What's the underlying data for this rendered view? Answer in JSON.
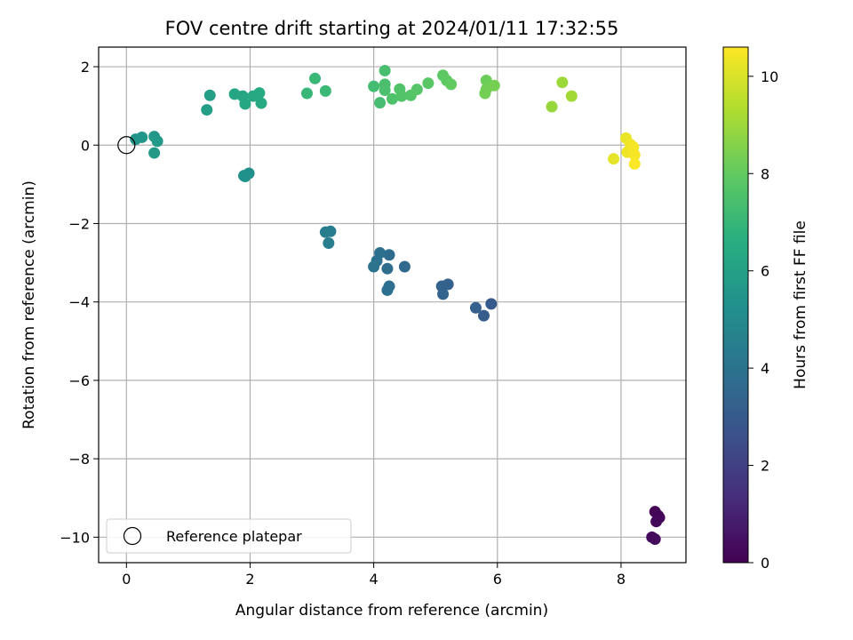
{
  "chart_data": {
    "type": "scatter",
    "title": "FOV centre drift starting at 2024/01/11 17:32:55",
    "xlabel": "Angular distance from reference (arcmin)",
    "ylabel": "Rotation from reference (arcmin)",
    "colorbar_label": "Hours from first FF file",
    "xlim": [
      -0.45,
      9.05
    ],
    "ylim": [
      -10.65,
      2.5
    ],
    "x_ticks": [
      0,
      2,
      4,
      6,
      8
    ],
    "y_ticks": [
      -10,
      -8,
      -6,
      -4,
      -2,
      0,
      2
    ],
    "colorbar_range": [
      0,
      10.6
    ],
    "colorbar_ticks": [
      0,
      2,
      4,
      6,
      8,
      10
    ],
    "colormap": "viridis",
    "grid": true,
    "legend": {
      "placement": "lower-left",
      "entries": [
        "Reference platepar"
      ]
    },
    "reference_point": {
      "x": 0,
      "y": 0
    },
    "points": [
      {
        "x": 8.55,
        "y": -9.35,
        "t": 0.05
      },
      {
        "x": 8.6,
        "y": -9.45,
        "t": 0.1
      },
      {
        "x": 8.62,
        "y": -9.5,
        "t": 0.15
      },
      {
        "x": 8.57,
        "y": -9.6,
        "t": 0.2
      },
      {
        "x": 8.5,
        "y": -10.0,
        "t": 0.25
      },
      {
        "x": 8.55,
        "y": -10.05,
        "t": 0.3
      },
      {
        "x": 5.9,
        "y": -4.05,
        "t": 3.0
      },
      {
        "x": 5.78,
        "y": -4.35,
        "t": 3.1
      },
      {
        "x": 5.65,
        "y": -4.15,
        "t": 3.2
      },
      {
        "x": 5.2,
        "y": -3.55,
        "t": 3.3
      },
      {
        "x": 5.1,
        "y": -3.6,
        "t": 3.35
      },
      {
        "x": 5.12,
        "y": -3.8,
        "t": 3.4
      },
      {
        "x": 4.5,
        "y": -3.1,
        "t": 3.6
      },
      {
        "x": 4.25,
        "y": -2.8,
        "t": 3.7
      },
      {
        "x": 4.22,
        "y": -3.15,
        "t": 3.75
      },
      {
        "x": 4.25,
        "y": -3.6,
        "t": 3.8
      },
      {
        "x": 4.22,
        "y": -3.7,
        "t": 3.85
      },
      {
        "x": 4.1,
        "y": -2.75,
        "t": 3.9
      },
      {
        "x": 4.05,
        "y": -2.95,
        "t": 3.95
      },
      {
        "x": 4.0,
        "y": -3.1,
        "t": 4.0
      },
      {
        "x": 3.3,
        "y": -2.2,
        "t": 4.4
      },
      {
        "x": 3.22,
        "y": -2.22,
        "t": 4.45
      },
      {
        "x": 3.27,
        "y": -2.5,
        "t": 4.5
      },
      {
        "x": 1.9,
        "y": -0.78,
        "t": 5.2
      },
      {
        "x": 1.98,
        "y": -0.72,
        "t": 5.25
      },
      {
        "x": 1.92,
        "y": -0.8,
        "t": 5.3
      },
      {
        "x": 0.15,
        "y": 0.15,
        "t": 5.5
      },
      {
        "x": 0.25,
        "y": 0.2,
        "t": 5.55
      },
      {
        "x": 0.45,
        "y": 0.22,
        "t": 5.6
      },
      {
        "x": 0.5,
        "y": 0.1,
        "t": 5.65
      },
      {
        "x": 0.45,
        "y": -0.2,
        "t": 5.7
      },
      {
        "x": 1.3,
        "y": 0.9,
        "t": 5.9
      },
      {
        "x": 1.35,
        "y": 1.27,
        "t": 5.95
      },
      {
        "x": 1.75,
        "y": 1.3,
        "t": 6.2
      },
      {
        "x": 1.88,
        "y": 1.25,
        "t": 6.25
      },
      {
        "x": 1.92,
        "y": 1.05,
        "t": 6.3
      },
      {
        "x": 2.05,
        "y": 1.25,
        "t": 6.35
      },
      {
        "x": 2.15,
        "y": 1.33,
        "t": 6.4
      },
      {
        "x": 2.18,
        "y": 1.07,
        "t": 6.45
      },
      {
        "x": 2.92,
        "y": 1.32,
        "t": 7.0
      },
      {
        "x": 3.05,
        "y": 1.7,
        "t": 7.05
      },
      {
        "x": 3.22,
        "y": 1.38,
        "t": 7.1
      },
      {
        "x": 4.0,
        "y": 1.5,
        "t": 7.3
      },
      {
        "x": 4.1,
        "y": 1.08,
        "t": 7.35
      },
      {
        "x": 4.18,
        "y": 1.9,
        "t": 7.4
      },
      {
        "x": 4.18,
        "y": 1.55,
        "t": 7.45
      },
      {
        "x": 4.18,
        "y": 1.4,
        "t": 7.5
      },
      {
        "x": 4.3,
        "y": 1.18,
        "t": 7.55
      },
      {
        "x": 4.42,
        "y": 1.43,
        "t": 7.6
      },
      {
        "x": 4.45,
        "y": 1.25,
        "t": 7.65
      },
      {
        "x": 4.6,
        "y": 1.27,
        "t": 7.7
      },
      {
        "x": 4.7,
        "y": 1.42,
        "t": 7.75
      },
      {
        "x": 4.88,
        "y": 1.58,
        "t": 7.8
      },
      {
        "x": 5.12,
        "y": 1.78,
        "t": 7.9
      },
      {
        "x": 5.18,
        "y": 1.65,
        "t": 7.95
      },
      {
        "x": 5.25,
        "y": 1.55,
        "t": 8.0
      },
      {
        "x": 5.82,
        "y": 1.65,
        "t": 8.2
      },
      {
        "x": 5.82,
        "y": 1.42,
        "t": 8.25
      },
      {
        "x": 5.8,
        "y": 1.32,
        "t": 8.3
      },
      {
        "x": 5.95,
        "y": 1.52,
        "t": 8.35
      },
      {
        "x": 6.88,
        "y": 0.98,
        "t": 8.9
      },
      {
        "x": 7.05,
        "y": 1.6,
        "t": 9.0
      },
      {
        "x": 7.2,
        "y": 1.25,
        "t": 9.1
      },
      {
        "x": 7.88,
        "y": -0.35,
        "t": 10.2
      },
      {
        "x": 8.08,
        "y": 0.18,
        "t": 10.3
      },
      {
        "x": 8.1,
        "y": -0.18,
        "t": 10.35
      },
      {
        "x": 8.15,
        "y": 0.02,
        "t": 10.4
      },
      {
        "x": 8.2,
        "y": -0.05,
        "t": 10.45
      },
      {
        "x": 8.22,
        "y": -0.25,
        "t": 10.5
      },
      {
        "x": 8.22,
        "y": -0.48,
        "t": 10.55
      }
    ]
  }
}
